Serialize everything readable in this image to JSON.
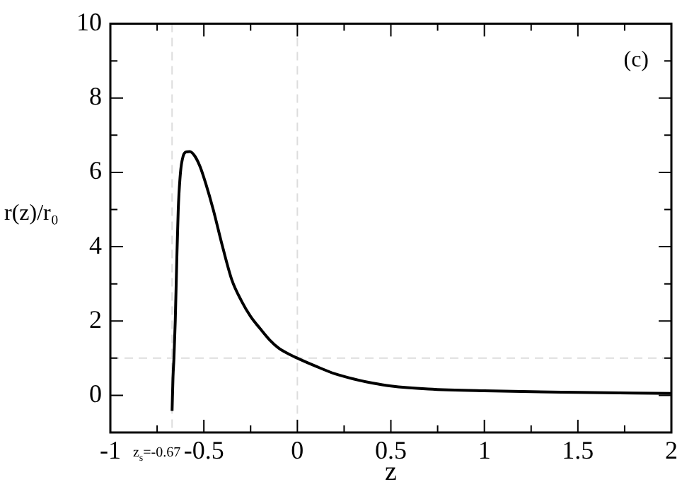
{
  "chart_data": {
    "type": "line",
    "xlabel": "z",
    "ylabel": "r(z)/r₀",
    "x": [
      -0.67,
      -0.665,
      -0.66,
      -0.653,
      -0.645,
      -0.637,
      -0.625,
      -0.61,
      -0.595,
      -0.575,
      -0.55,
      -0.52,
      -0.49,
      -0.45,
      -0.4,
      -0.35,
      -0.3,
      -0.25,
      -0.2,
      -0.15,
      -0.1,
      -0.05,
      0,
      0.1,
      0.2,
      0.3,
      0.4,
      0.5,
      0.7,
      1,
      1.5,
      2
    ],
    "series": [
      {
        "color": "#000000",
        "values": [
          -0.42,
          0.5,
          1.0,
          2.0,
          3.6,
          5.0,
          6.0,
          6.45,
          6.55,
          6.56,
          6.45,
          6.15,
          5.7,
          5.0,
          4.0,
          3.1,
          2.55,
          2.12,
          1.8,
          1.5,
          1.27,
          1.12,
          1.0,
          0.78,
          0.58,
          0.44,
          0.33,
          0.25,
          0.17,
          0.12,
          0.08,
          0.05
        ]
      }
    ],
    "xlim": [
      -1,
      2
    ],
    "ylim": [
      -1,
      10
    ],
    "xticks": [
      -1,
      {
        "value": -0.75,
        "label": null
      },
      -0.5,
      {
        "value": -0.25,
        "label": null
      },
      0,
      {
        "value": 0.25,
        "label": null
      },
      0.5,
      {
        "value": 0.75,
        "label": null
      },
      1,
      {
        "value": 1.25,
        "label": null
      },
      1.5,
      {
        "value": 1.75,
        "label": null
      },
      2
    ],
    "yticks": [
      {
        "value": -1,
        "label": null
      },
      0,
      {
        "value": 1,
        "label": null
      },
      2,
      {
        "value": 3,
        "label": null
      },
      4,
      {
        "value": 5,
        "label": null
      },
      6,
      {
        "value": 7,
        "label": null
      },
      8,
      {
        "value": 9,
        "label": null
      },
      10
    ],
    "ref_lines": [
      {
        "axis": "x",
        "value": -0.67,
        "label": "z$_{s}$=-0.67",
        "color": "#dddddd",
        "line_style": "dashed"
      },
      {
        "axis": "y",
        "value": 1,
        "color": "#dddddd",
        "line_style": "dashed"
      },
      {
        "axis": "x",
        "value": 0,
        "color": "#dddddd",
        "line_style": "dashed"
      }
    ],
    "annotations": [
      "(c)"
    ],
    "grid": false,
    "legend": false,
    "marker": "none",
    "line_style": "solid"
  }
}
